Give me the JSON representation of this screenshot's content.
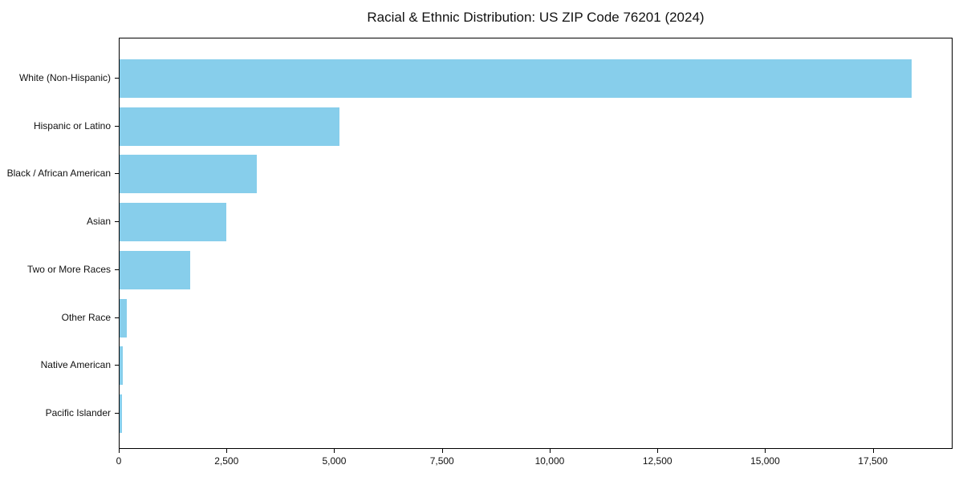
{
  "chart_data": {
    "type": "bar",
    "orientation": "horizontal",
    "title": "Racial & Ethnic Distribution: US ZIP Code 76201 (2024)",
    "categories": [
      "White (Non-Hispanic)",
      "Hispanic or Latino",
      "Black / African American",
      "Asian",
      "Two or More Races",
      "Other Race",
      "Native American",
      "Pacific Islander"
    ],
    "values": [
      18380,
      5100,
      3180,
      2480,
      1640,
      170,
      70,
      50
    ],
    "xlabel": "",
    "ylabel": "",
    "xlim": [
      0,
      19350
    ],
    "x_ticks": [
      0,
      2500,
      5000,
      7500,
      10000,
      12500,
      15000,
      17500
    ],
    "x_tick_labels": [
      "0",
      "2,500",
      "5,000",
      "7,500",
      "10,000",
      "12,500",
      "15,000",
      "17,500"
    ],
    "bar_color": "#87CEEB",
    "axis_color": "#000000",
    "background_color": "#ffffff",
    "grid": false,
    "legend": "none"
  }
}
